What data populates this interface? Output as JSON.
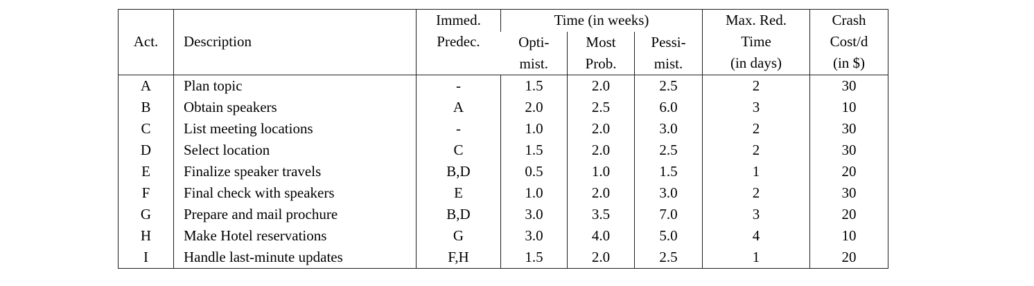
{
  "table": {
    "header": {
      "act": "Act.",
      "description": "Description",
      "immed_predec": {
        "line1": "Immed.",
        "line2": "Predec."
      },
      "time_group": "Time (in weeks)",
      "optimist": {
        "line1": "Opti-",
        "line2": "mist."
      },
      "most_probable": {
        "line1": "Most",
        "line2": "Prob."
      },
      "pessimist": {
        "line1": "Pessi-",
        "line2": "mist."
      },
      "max_reduction": {
        "line1": "Max. Red.",
        "line2": "Time",
        "line3": "(in days)"
      },
      "crash_cost": {
        "line1": "Crash",
        "line2": "Cost/d",
        "line3": "(in $)"
      }
    },
    "rows": [
      {
        "act": "A",
        "description": "Plan topic",
        "predecessor": "-",
        "optimistic": "1.5",
        "most_probable": "2.0",
        "pessimistic": "2.5",
        "max_reduction_days": "2",
        "crash_cost_per_day": "30"
      },
      {
        "act": "B",
        "description": "Obtain speakers",
        "predecessor": "A",
        "optimistic": "2.0",
        "most_probable": "2.5",
        "pessimistic": "6.0",
        "max_reduction_days": "3",
        "crash_cost_per_day": "10"
      },
      {
        "act": "C",
        "description": "List meeting locations",
        "predecessor": "-",
        "optimistic": "1.0",
        "most_probable": "2.0",
        "pessimistic": "3.0",
        "max_reduction_days": "2",
        "crash_cost_per_day": "30"
      },
      {
        "act": "D",
        "description": "Select location",
        "predecessor": "C",
        "optimistic": "1.5",
        "most_probable": "2.0",
        "pessimistic": "2.5",
        "max_reduction_days": "2",
        "crash_cost_per_day": "30"
      },
      {
        "act": "E",
        "description": "Finalize speaker travels",
        "predecessor": "B,D",
        "optimistic": "0.5",
        "most_probable": "1.0",
        "pessimistic": "1.5",
        "max_reduction_days": "1",
        "crash_cost_per_day": "20"
      },
      {
        "act": "F",
        "description": "Final check with speakers",
        "predecessor": "E",
        "optimistic": "1.0",
        "most_probable": "2.0",
        "pessimistic": "3.0",
        "max_reduction_days": "2",
        "crash_cost_per_day": "30"
      },
      {
        "act": "G",
        "description": "Prepare and mail prochure",
        "predecessor": "B,D",
        "optimistic": "3.0",
        "most_probable": "3.5",
        "pessimistic": "7.0",
        "max_reduction_days": "3",
        "crash_cost_per_day": "20"
      },
      {
        "act": "H",
        "description": "Make Hotel reservations",
        "predecessor": "G",
        "optimistic": "3.0",
        "most_probable": "4.0",
        "pessimistic": "5.0",
        "max_reduction_days": "4",
        "crash_cost_per_day": "10"
      },
      {
        "act": "I",
        "description": "Handle last-minute updates",
        "predecessor": "F,H",
        "optimistic": "1.5",
        "most_probable": "2.0",
        "pessimistic": "2.5",
        "max_reduction_days": "1",
        "crash_cost_per_day": "20"
      }
    ]
  }
}
